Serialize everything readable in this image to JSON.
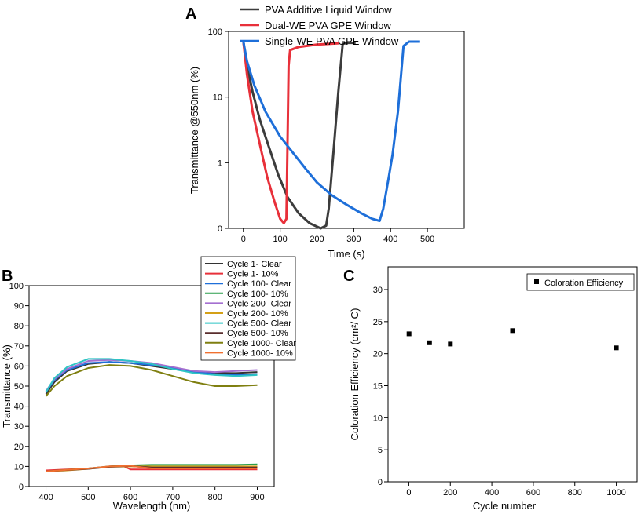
{
  "chart_data": [
    {
      "panel": "A",
      "type": "line",
      "xlabel": "Time (s)",
      "ylabel": "Transmittance @550nm (%)",
      "xlim": [
        -40,
        600
      ],
      "ylim_log10": [
        0,
        100
      ],
      "xticks": [
        "0",
        "100",
        "200",
        "300",
        "400",
        "500"
      ],
      "yticks": [
        "0",
        "1",
        "10",
        "100"
      ],
      "series": [
        {
          "name": "PVA  Additive Liquid Window",
          "color": "#3c3c3c",
          "x": [
            0,
            10,
            25,
            45,
            70,
            95,
            120,
            150,
            180,
            210,
            225,
            232,
            245,
            258,
            270,
            285,
            305
          ],
          "y": [
            70,
            30,
            12,
            4.5,
            1.7,
            0.65,
            0.3,
            0.17,
            0.12,
            0.1,
            0.11,
            0.2,
            1.5,
            12,
            65,
            67,
            67
          ]
        },
        {
          "name": "Dual-WE PVA GPE Window",
          "color": "#e8303a",
          "x": [
            0,
            10,
            25,
            45,
            65,
            85,
            100,
            110,
            117,
            120,
            123,
            127,
            150,
            200,
            260
          ],
          "y": [
            70,
            22,
            6,
            1.9,
            0.6,
            0.25,
            0.14,
            0.12,
            0.14,
            2,
            30,
            52,
            58,
            63,
            66
          ]
        },
        {
          "name": "Single-WE PVA GPE Window",
          "color": "#1e6fd9",
          "x": [
            0,
            10,
            30,
            60,
            100,
            140,
            170,
            200,
            240,
            280,
            320,
            350,
            370,
            380,
            395,
            405,
            420,
            435,
            450,
            480
          ],
          "y": [
            70,
            35,
            15,
            6,
            2.5,
            1.3,
            0.8,
            0.5,
            0.32,
            0.23,
            0.17,
            0.14,
            0.13,
            0.2,
            0.6,
            1.3,
            6,
            60,
            70,
            70
          ]
        }
      ]
    },
    {
      "panel": "B",
      "type": "line",
      "xlabel": "Wavelength (nm)",
      "ylabel": "Transmittance (%)",
      "xlim": [
        360,
        940
      ],
      "ylim": [
        0,
        100
      ],
      "xticks": [
        "400",
        "500",
        "600",
        "700",
        "800",
        "900"
      ],
      "yticks": [
        "0",
        "10",
        "20",
        "30",
        "40",
        "50",
        "60",
        "70",
        "80",
        "90",
        "100"
      ],
      "series": [
        {
          "name": "Cycle 1- Clear",
          "color": "#333333",
          "x": [
            400,
            420,
            450,
            500,
            550,
            600,
            650,
            700,
            750,
            800,
            850,
            900
          ],
          "y": [
            46,
            52,
            57.5,
            61,
            62,
            61.5,
            60,
            58.5,
            57,
            56.5,
            56.5,
            57
          ]
        },
        {
          "name": "Cycle 1- 10%",
          "color": "#e8303a",
          "x": [
            400,
            450,
            500,
            550,
            580,
            600,
            650,
            700,
            750,
            800,
            850,
            900
          ],
          "y": [
            8,
            8.5,
            9,
            10,
            10.5,
            8.5,
            8.5,
            8.5,
            8.5,
            8.5,
            8.5,
            8.5
          ]
        },
        {
          "name": "Cycle 100- Clear",
          "color": "#1e6fd9",
          "x": [
            400,
            420,
            450,
            500,
            550,
            600,
            650,
            700,
            750,
            800,
            850,
            900
          ],
          "y": [
            47,
            53,
            58,
            61.5,
            62,
            61.5,
            60.5,
            59,
            57,
            56,
            55.5,
            56
          ]
        },
        {
          "name": "Cycle 100- 10%",
          "color": "#2a9d4b",
          "x": [
            400,
            450,
            500,
            550,
            600,
            650,
            700,
            750,
            800,
            850,
            900
          ],
          "y": [
            7.5,
            8.3,
            9,
            10,
            10.5,
            10.8,
            10.8,
            10.8,
            10.8,
            10.8,
            11
          ]
        },
        {
          "name": "Cycle 200- Clear",
          "color": "#a46fd0",
          "x": [
            400,
            420,
            450,
            500,
            550,
            600,
            650,
            700,
            750,
            800,
            850,
            900
          ],
          "y": [
            47.5,
            53.5,
            58.5,
            62.5,
            63,
            62.5,
            61.5,
            59.5,
            57.5,
            57,
            57.5,
            58
          ]
        },
        {
          "name": "Cycle 200- 10%",
          "color": "#d4a017",
          "x": [
            400,
            450,
            500,
            550,
            600,
            650,
            700,
            750,
            800,
            850,
            900
          ],
          "y": [
            7.5,
            8,
            8.8,
            9.8,
            10,
            10,
            10,
            10,
            10,
            10,
            10
          ]
        },
        {
          "name": "Cycle 500- Clear",
          "color": "#2ec4c4",
          "x": [
            400,
            420,
            450,
            500,
            550,
            600,
            650,
            700,
            750,
            800,
            850,
            900
          ],
          "y": [
            47,
            54,
            59.5,
            63.5,
            63.5,
            62.5,
            61,
            58.5,
            56.5,
            55.5,
            55,
            55.5
          ]
        },
        {
          "name": "Cycle 500- 10%",
          "color": "#5a2e2e",
          "x": [
            400,
            450,
            500,
            550,
            600,
            650,
            700,
            750,
            800,
            850,
            900
          ],
          "y": [
            7.5,
            8.2,
            8.8,
            9.8,
            10.2,
            9.5,
            9.5,
            9.5,
            9.5,
            9.5,
            9.5
          ]
        },
        {
          "name": "Cycle 1000- Clear",
          "color": "#7f7f10",
          "x": [
            400,
            420,
            450,
            500,
            550,
            600,
            650,
            700,
            750,
            800,
            850,
            900
          ],
          "y": [
            45,
            50,
            55,
            59,
            60.5,
            60,
            58,
            55,
            52,
            50,
            50,
            50.5
          ]
        },
        {
          "name": "Cycle 1000- 10%",
          "color": "#f07030",
          "x": [
            400,
            450,
            500,
            550,
            600,
            650,
            700,
            750,
            800,
            850,
            900
          ],
          "y": [
            7.5,
            8.3,
            9,
            10,
            10.3,
            9,
            9,
            9,
            9,
            9,
            9
          ]
        }
      ]
    },
    {
      "panel": "C",
      "type": "scatter",
      "xlabel": "Cycle number",
      "ylabel": "Coloration Efficiency (cm²/ C)",
      "xlim": [
        -100,
        1100
      ],
      "ylim": [
        0,
        30
      ],
      "xticks": [
        "0",
        "200",
        "400",
        "600",
        "800",
        "1000"
      ],
      "yticks": [
        "0",
        "5",
        "10",
        "15",
        "20",
        "25",
        "30"
      ],
      "legend": "Coloration Efficiency",
      "x": [
        1,
        100,
        200,
        500,
        1000
      ],
      "y": [
        23.1,
        21.7,
        21.5,
        23.6,
        20.9
      ]
    }
  ]
}
